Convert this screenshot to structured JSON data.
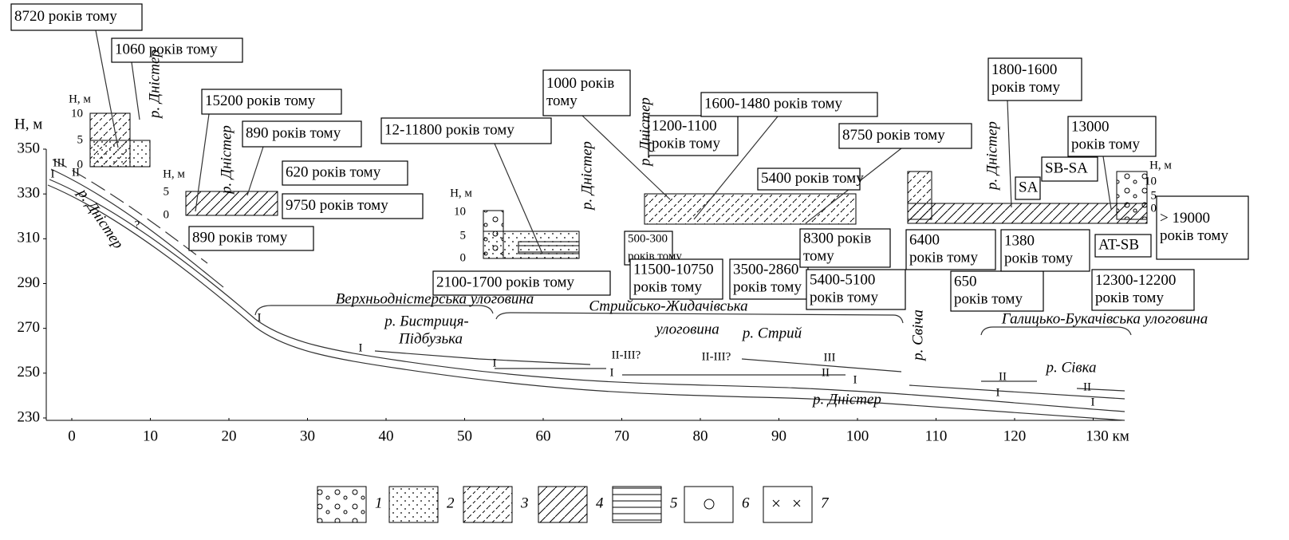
{
  "y_axis": {
    "label": "Н, м",
    "ticks": [
      350,
      330,
      310,
      290,
      270,
      250,
      230
    ]
  },
  "x_axis": {
    "ticks": [
      0,
      10,
      20,
      30,
      40,
      50,
      60,
      70,
      80,
      90,
      100,
      110,
      120,
      {
        "value": 130,
        "label": "130 км"
      }
    ]
  },
  "insets": [
    {
      "label": "Н, м",
      "ticks": [
        10,
        5,
        0
      ]
    },
    {
      "label": "Н, м",
      "ticks": [
        5,
        0
      ]
    },
    {
      "label": "Н, м",
      "ticks": [
        10,
        5,
        0
      ]
    },
    {
      "label": "Н, м",
      "ticks": [
        10,
        5,
        0
      ]
    }
  ],
  "age_labels": [
    [
      "8720 років тому"
    ],
    [
      "1060 років тому"
    ],
    [
      "15200 років тому"
    ],
    [
      "890 років тому"
    ],
    [
      "620 років тому"
    ],
    [
      "9750 років тому"
    ],
    [
      "890 років тому"
    ],
    [
      "12-11800 років тому"
    ],
    [
      "2100-1700 років тому"
    ],
    [
      "1000 років",
      "тому"
    ],
    [
      "1200-1100",
      "років тому"
    ],
    [
      "1600-1480 років тому"
    ],
    [
      "8750 років тому"
    ],
    [
      "5400 років тому"
    ],
    [
      "500-300",
      "років тому"
    ],
    [
      "11500-10750",
      "років тому"
    ],
    [
      "3500-2860",
      "років тому"
    ],
    [
      "8300 років",
      "тому"
    ],
    [
      "5400-5100",
      "років тому"
    ],
    [
      "6400",
      "років тому"
    ],
    [
      "650",
      "років тому"
    ],
    [
      "1800-1600",
      "років тому"
    ],
    [
      "13000",
      "років тому"
    ],
    [
      "SB-SA"
    ],
    [
      "SA"
    ],
    [
      "1380",
      "років тому"
    ],
    [
      "> 19000",
      "років тому"
    ],
    [
      "AT-SB"
    ],
    [
      "12300-12200",
      "років тому"
    ]
  ],
  "river_labels": [
    "р. Дністер",
    "р. Дністер",
    "р. Дністер",
    "р. Дністер",
    "р. Дністер",
    "р. Дністер",
    "р. Дністер",
    "р. Бистриця-",
    "Підбузька",
    "р. Стрий",
    "р. Свіча",
    "р. Сівка"
  ],
  "basin_labels": [
    "Верхньодністерська улоговина",
    "Стрийсько-Жидачівська",
    "улоговина",
    "Галицько-Букачівська улоговина"
  ],
  "terrace_labels": [
    "III",
    "II",
    "I",
    "?",
    "I",
    "I",
    "I",
    "II-III?",
    "II-III?",
    "III",
    "II",
    "I",
    "I",
    "II",
    "I",
    "II",
    "I"
  ],
  "legend": [
    "1",
    "2",
    "3",
    "4",
    "5",
    "6",
    "7"
  ]
}
